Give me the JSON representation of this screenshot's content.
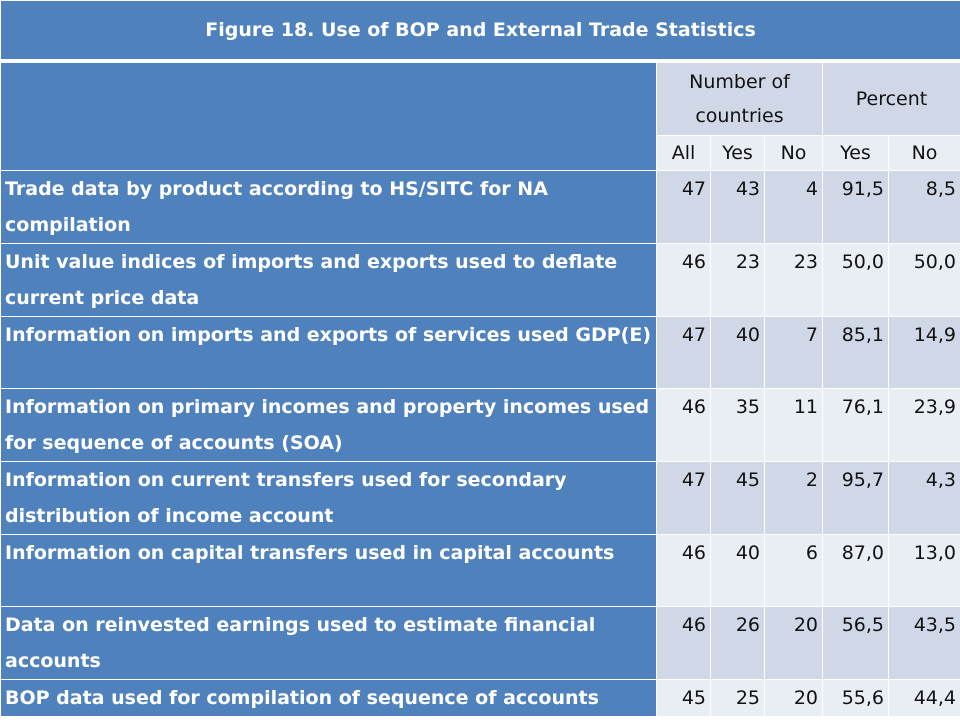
{
  "title": "Figure 18. Use of BOP and External Trade Statistics",
  "groups": {
    "number_of_countries_line1": "Number of",
    "number_of_countries_line2": "countries",
    "percent": "Percent"
  },
  "subheaders": [
    "All",
    "Yes",
    "No",
    "Yes",
    "No"
  ],
  "rows": [
    {
      "label": "Trade data by product according to HS/SITC for NA compilation",
      "values": [
        "47",
        "43",
        "4",
        "91,5",
        "8,5"
      ]
    },
    {
      "label": "Unit value indices of imports and exports used to deflate current price data",
      "values": [
        "46",
        "23",
        "23",
        "50,0",
        "50,0"
      ]
    },
    {
      "label": "Information on imports and exports of services used GDP(E)",
      "values": [
        "47",
        "40",
        "7",
        "85,1",
        "14,9"
      ]
    },
    {
      "label": "Information on primary incomes and property incomes used for sequence of accounts (SOA)",
      "values": [
        "46",
        "35",
        "11",
        "76,1",
        "23,9"
      ]
    },
    {
      "label": "Information on current transfers used for secondary distribution of income account",
      "values": [
        "47",
        "45",
        "2",
        "95,7",
        "4,3"
      ]
    },
    {
      "label": "Information on capital transfers used in capital accounts",
      "values": [
        "46",
        "40",
        "6",
        "87,0",
        "13,0"
      ]
    },
    {
      "label": "Data on reinvested earnings used to estimate financial accounts",
      "values": [
        "46",
        "26",
        "20",
        "56,5",
        "43,5"
      ]
    },
    {
      "label": "BOP data used for compilation of sequence of accounts",
      "values": [
        "45",
        "25",
        "20",
        "55,6",
        "44,4"
      ]
    }
  ]
}
